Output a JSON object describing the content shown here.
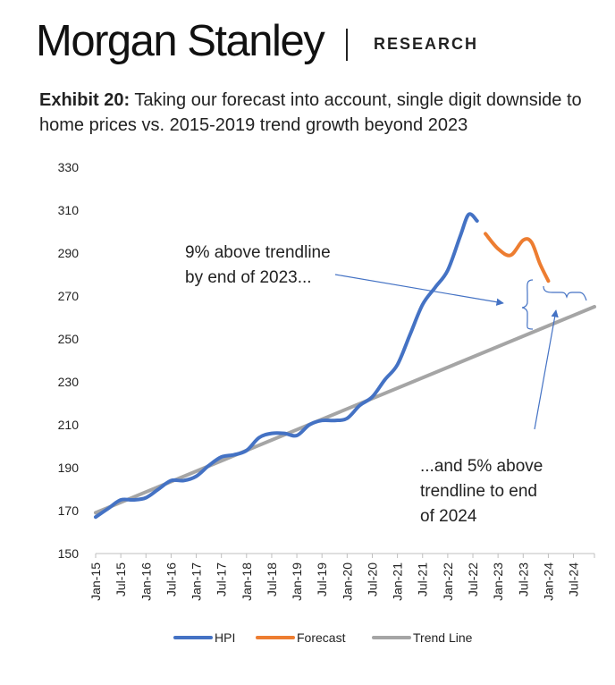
{
  "header": {
    "brand": "Morgan Stanley",
    "section": "RESEARCH"
  },
  "exhibit": {
    "label": "Exhibit 20:",
    "title": "Taking our forecast into account, single digit downside to home prices vs. 2015-2019 trend growth beyond 2023"
  },
  "colors": {
    "hpi": "#4472C4",
    "forecast": "#ED7D31",
    "trend": "#A5A5A5",
    "annotation": "#4472C4"
  },
  "chart_data": {
    "type": "line",
    "title": "",
    "xlabel": "",
    "ylabel": "",
    "ylim": [
      150,
      330
    ],
    "yticks": [
      150,
      170,
      190,
      210,
      230,
      250,
      270,
      290,
      310,
      330
    ],
    "x_start": "Jan-15",
    "x_end": "Dec-24",
    "x_ticks": [
      "Jan-15",
      "Jul-15",
      "Jan-16",
      "Jul-16",
      "Jan-17",
      "Jul-17",
      "Jan-18",
      "Jul-18",
      "Jan-19",
      "Jul-19",
      "Jan-20",
      "Jul-20",
      "Jan-21",
      "Jul-21",
      "Jan-22",
      "Jul-22",
      "Jan-23",
      "Jul-23",
      "Jan-24",
      "Jul-24"
    ],
    "grid": false,
    "legend_position": "bottom",
    "series": [
      {
        "name": "HPI",
        "points": [
          {
            "x": "Jan-15",
            "y": 167
          },
          {
            "x": "Apr-15",
            "y": 171
          },
          {
            "x": "Jul-15",
            "y": 175
          },
          {
            "x": "Oct-15",
            "y": 175
          },
          {
            "x": "Jan-16",
            "y": 176
          },
          {
            "x": "Apr-16",
            "y": 180
          },
          {
            "x": "Jul-16",
            "y": 184
          },
          {
            "x": "Oct-16",
            "y": 184
          },
          {
            "x": "Jan-17",
            "y": 186
          },
          {
            "x": "Apr-17",
            "y": 191
          },
          {
            "x": "Jul-17",
            "y": 195
          },
          {
            "x": "Oct-17",
            "y": 196
          },
          {
            "x": "Jan-18",
            "y": 198
          },
          {
            "x": "Apr-18",
            "y": 204
          },
          {
            "x": "Jul-18",
            "y": 206
          },
          {
            "x": "Oct-18",
            "y": 206
          },
          {
            "x": "Jan-19",
            "y": 205
          },
          {
            "x": "Apr-19",
            "y": 210
          },
          {
            "x": "Jul-19",
            "y": 212
          },
          {
            "x": "Oct-19",
            "y": 212
          },
          {
            "x": "Jan-20",
            "y": 213
          },
          {
            "x": "Apr-20",
            "y": 219
          },
          {
            "x": "Jul-20",
            "y": 223
          },
          {
            "x": "Oct-20",
            "y": 231
          },
          {
            "x": "Jan-21",
            "y": 238
          },
          {
            "x": "Apr-21",
            "y": 252
          },
          {
            "x": "Jul-21",
            "y": 266
          },
          {
            "x": "Oct-21",
            "y": 274
          },
          {
            "x": "Jan-22",
            "y": 282
          },
          {
            "x": "Apr-22",
            "y": 298
          },
          {
            "x": "Jun-22",
            "y": 308
          },
          {
            "x": "Aug-22",
            "y": 305
          }
        ]
      },
      {
        "name": "Forecast",
        "points": [
          {
            "x": "Oct-22",
            "y": 299
          },
          {
            "x": "Jan-23",
            "y": 292
          },
          {
            "x": "Apr-23",
            "y": 289
          },
          {
            "x": "Jul-23",
            "y": 296
          },
          {
            "x": "Sep-23",
            "y": 295
          },
          {
            "x": "Nov-23",
            "y": 285
          },
          {
            "x": "Jan-24",
            "y": 277
          }
        ]
      },
      {
        "name": "Trend Line",
        "points": [
          {
            "x": "Jan-15",
            "y": 169
          },
          {
            "x": "Dec-24",
            "y": 265
          }
        ]
      }
    ],
    "annotations": [
      {
        "text_lines": [
          "9% above trendline",
          "by end of 2023..."
        ]
      },
      {
        "text_lines": [
          "...and 5% above",
          "trendline to end",
          "of 2024"
        ]
      }
    ]
  }
}
